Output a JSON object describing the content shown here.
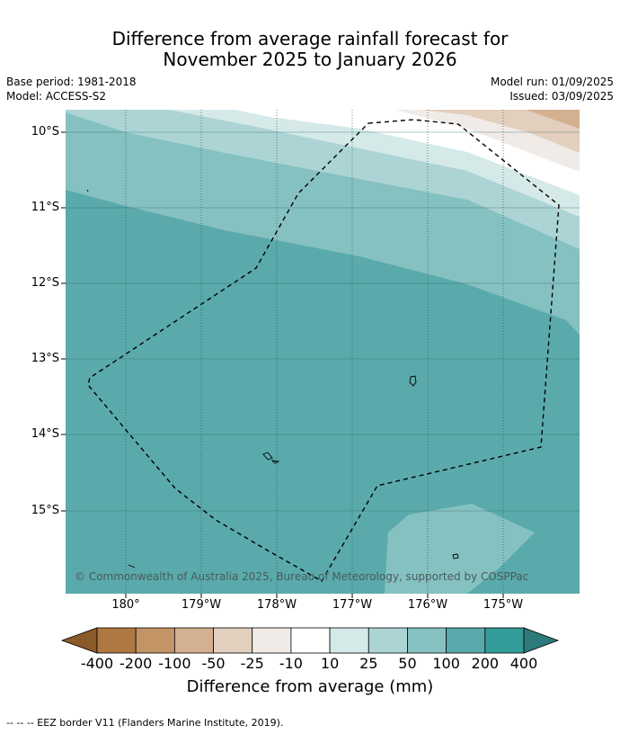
{
  "title": {
    "line1": "Difference from average rainfall forecast for",
    "line2": "November 2025 to January 2026"
  },
  "meta": {
    "base_period": "Base period: 1981-2018",
    "model": "Model: ACCESS-S2",
    "model_run": "Model run: 01/09/2025",
    "issued": "Issued: 03/09/2025"
  },
  "map": {
    "lat_labels": [
      "10°S",
      "11°S",
      "12°S",
      "13°S",
      "14°S",
      "15°S"
    ],
    "lon_labels": [
      "180°",
      "179°W",
      "178°W",
      "177°W",
      "176°W",
      "175°W"
    ],
    "copyright": "© Commonwealth of Australia 2025, Bureau of Meteorology, supported by COSPPac",
    "colors": {
      "ocean_base": "#5aaaab",
      "band_50_100": "#86c1c1",
      "band_25_50": "#add4d4",
      "band_10_25": "#d5e9e9",
      "band_neg10_10": "#ffffff",
      "band_neg25_neg10": "#f0ebe7",
      "band_neg50_neg25": "#e3cfbe",
      "band_neg100_neg50": "#d3b090",
      "island_patch": "#86c1c1"
    }
  },
  "colorbar": {
    "title": "Difference from average (mm)",
    "ticks": [
      "-400",
      "-200",
      "-100",
      "-50",
      "-25",
      "-10",
      "10",
      "25",
      "50",
      "100",
      "200",
      "400"
    ],
    "colors": [
      "#b07841",
      "#c29466",
      "#d3b090",
      "#e3cfbe",
      "#f0ebe7",
      "#ffffff",
      "#d5e9e9",
      "#add4d4",
      "#86c1c1",
      "#5aaaab",
      "#339d9a"
    ],
    "under_color": "#8b5a2b",
    "over_color": "#2e7a7a"
  },
  "footer": "--  --  -- EEZ border V11 (Flanders Marine Institute, 2019)."
}
